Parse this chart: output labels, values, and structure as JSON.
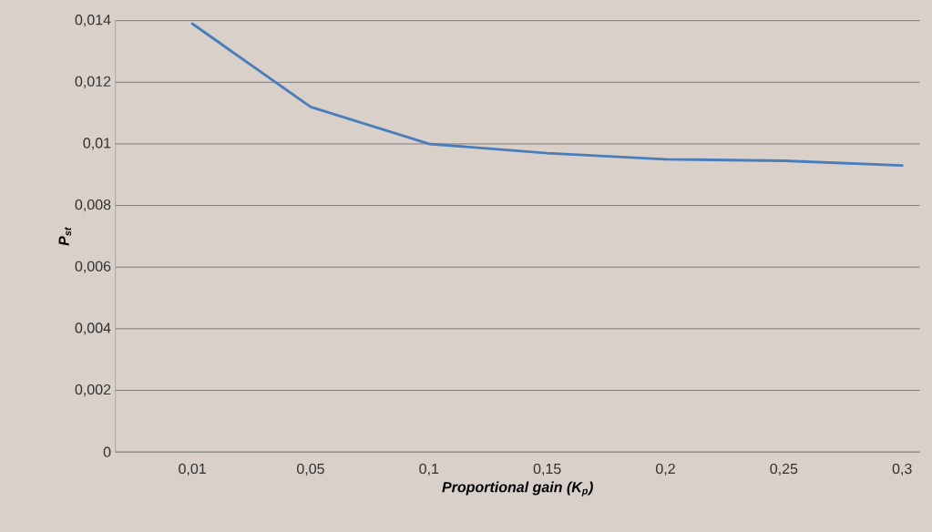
{
  "chart_data": {
    "type": "line",
    "xlabel": "Proportional gain (K$_{p}$)",
    "ylabel": "P$_{st}$",
    "categories": [
      "0,01",
      "0,05",
      "0,1",
      "0,15",
      "0,2",
      "0,25",
      "0,3"
    ],
    "series": [
      {
        "color": "#4a7ebb",
        "values": [
          0.0139,
          0.0112,
          0.01,
          0.0097,
          0.0095,
          0.00945,
          0.0093
        ]
      }
    ],
    "ylim": [
      0,
      0.014
    ],
    "yticks": [
      {
        "value": 0,
        "label": "0"
      },
      {
        "value": 0.002,
        "label": "0,002"
      },
      {
        "value": 0.004,
        "label": "0,004"
      },
      {
        "value": 0.006,
        "label": "0,006"
      },
      {
        "value": 0.008,
        "label": "0,008"
      },
      {
        "value": 0.01,
        "label": "0,01"
      },
      {
        "value": 0.012,
        "label": "0,012"
      },
      {
        "value": 0.014,
        "label": "0,014"
      }
    ],
    "grid": "y",
    "marker": "none",
    "line_style": "solid"
  }
}
